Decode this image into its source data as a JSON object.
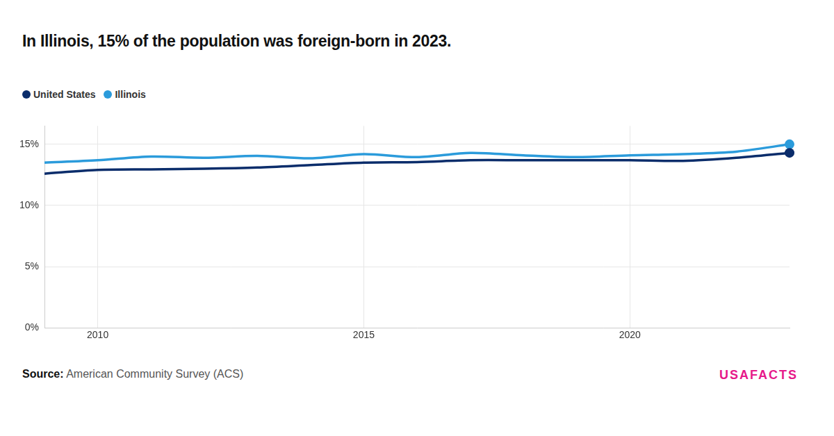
{
  "chart_data": {
    "type": "line",
    "title": "In Illinois, 15% of the population was foreign-born in 2023.",
    "source_label": "Source:",
    "source": "American Community Survey (ACS)",
    "brand": "USAFACTS",
    "x": [
      2009,
      2010,
      2011,
      2012,
      2013,
      2014,
      2015,
      2016,
      2017,
      2018,
      2019,
      2020,
      2021,
      2022,
      2023
    ],
    "series": [
      {
        "name": "United States",
        "color": "#0b2d6b",
        "marker": "end",
        "values": [
          12.6,
          12.9,
          12.95,
          13.0,
          13.1,
          13.3,
          13.5,
          13.55,
          13.7,
          13.7,
          13.7,
          13.7,
          13.65,
          13.9,
          14.3
        ]
      },
      {
        "name": "Illinois",
        "color": "#2b9bdb",
        "marker": "end",
        "values": [
          13.5,
          13.7,
          14.0,
          13.9,
          14.05,
          13.85,
          14.2,
          13.95,
          14.3,
          14.1,
          13.95,
          14.1,
          14.2,
          14.4,
          15.0
        ]
      }
    ],
    "xlim": [
      2009,
      2023
    ],
    "xticks": [
      2010,
      2015,
      2020
    ],
    "ylim": [
      0,
      16.5
    ],
    "yticks": [
      {
        "value": 0,
        "label": "0%"
      },
      {
        "value": 5,
        "label": "5%"
      },
      {
        "value": 10,
        "label": "10%"
      },
      {
        "value": 15,
        "label": "15%"
      }
    ],
    "grid": true
  }
}
